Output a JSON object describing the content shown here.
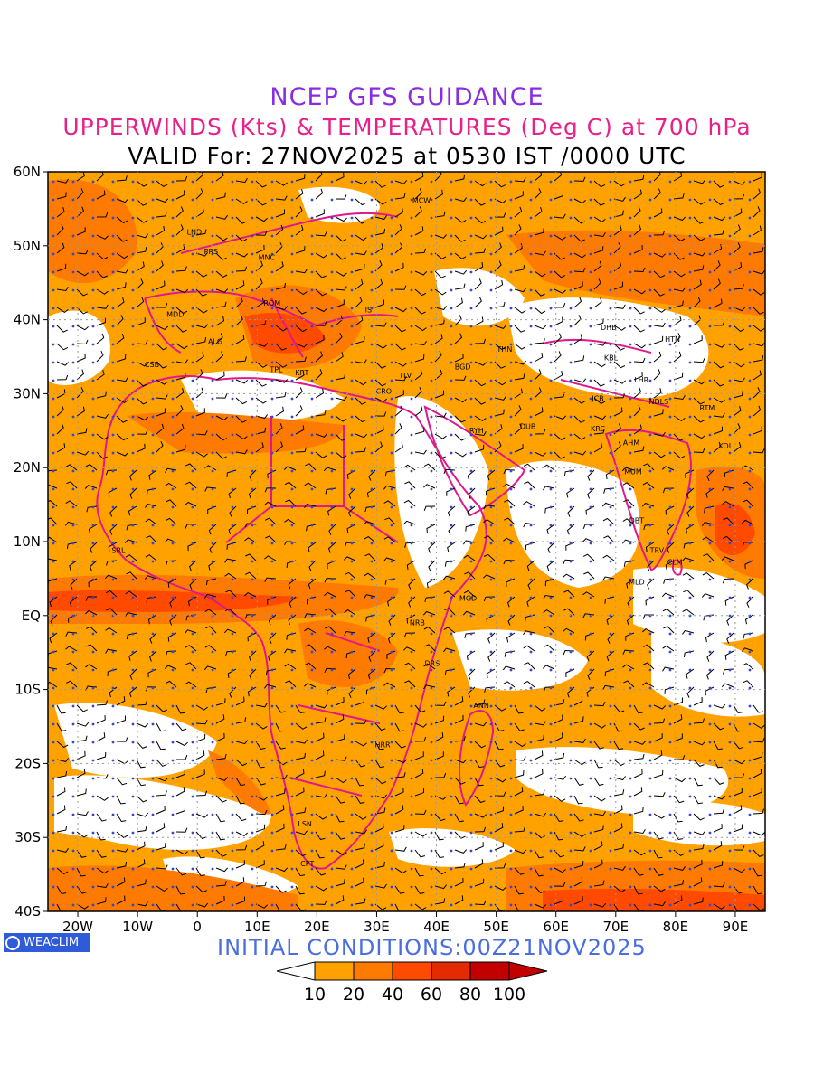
{
  "header": {
    "title": "NCEP GFS GUIDANCE",
    "subtitle": "UPPERWINDS (Kts) & TEMPERATURES (Deg C) at 700 hPa",
    "valid": "VALID For: 27NOV2025 at 0530 IST /0000 UTC"
  },
  "map": {
    "lat_labels": [
      "60N",
      "50N",
      "40N",
      "30N",
      "20N",
      "10N",
      "EQ",
      "10S",
      "20S",
      "30S",
      "40S"
    ],
    "lon_labels": [
      "20W",
      "10W",
      "0",
      "10E",
      "20E",
      "30E",
      "40E",
      "50E",
      "60E",
      "70E",
      "80E",
      "90E"
    ],
    "station_labels": [
      {
        "code": "MCW",
        "lon": 37.5,
        "lat": 55.8
      },
      {
        "code": "LND",
        "lon": -0.5,
        "lat": 51.5
      },
      {
        "code": "PRS",
        "lon": 2.3,
        "lat": 48.9
      },
      {
        "code": "MNC",
        "lon": 11.6,
        "lat": 48.1
      },
      {
        "code": "ROM",
        "lon": 12.5,
        "lat": 41.9
      },
      {
        "code": "IST",
        "lon": 29.0,
        "lat": 41.0
      },
      {
        "code": "MDD",
        "lon": -3.7,
        "lat": 40.4
      },
      {
        "code": "ALG",
        "lon": 3.0,
        "lat": 36.7
      },
      {
        "code": "CSB",
        "lon": -7.6,
        "lat": 33.6
      },
      {
        "code": "TPL",
        "lon": 13.2,
        "lat": 32.9
      },
      {
        "code": "KRT",
        "lon": 17.5,
        "lat": 32.5
      },
      {
        "code": "TLV",
        "lon": 34.8,
        "lat": 32.1
      },
      {
        "code": "CRO",
        "lon": 31.2,
        "lat": 30.0
      },
      {
        "code": "BGD",
        "lon": 44.4,
        "lat": 33.3
      },
      {
        "code": "THN",
        "lon": 51.4,
        "lat": 35.7
      },
      {
        "code": "DHB",
        "lon": 68.8,
        "lat": 38.6
      },
      {
        "code": "KBL",
        "lon": 69.2,
        "lat": 34.5
      },
      {
        "code": "HTN",
        "lon": 79.5,
        "lat": 37.0
      },
      {
        "code": "LHR",
        "lon": 74.3,
        "lat": 31.5
      },
      {
        "code": "NDLS",
        "lon": 77.2,
        "lat": 28.6
      },
      {
        "code": "RTM",
        "lon": 85.3,
        "lat": 27.7
      },
      {
        "code": "JCB",
        "lon": 67.0,
        "lat": 29.0
      },
      {
        "code": "RYH",
        "lon": 46.7,
        "lat": 24.7
      },
      {
        "code": "DUB",
        "lon": 55.3,
        "lat": 25.2
      },
      {
        "code": "KRC",
        "lon": 67.0,
        "lat": 24.9
      },
      {
        "code": "AHM",
        "lon": 72.6,
        "lat": 23.0
      },
      {
        "code": "KOL",
        "lon": 88.4,
        "lat": 22.6
      },
      {
        "code": "MUM",
        "lon": 72.9,
        "lat": 19.1
      },
      {
        "code": "DBT",
        "lon": 73.5,
        "lat": 12.5
      },
      {
        "code": "TRV",
        "lon": 76.9,
        "lat": 8.5
      },
      {
        "code": "CLM",
        "lon": 79.9,
        "lat": 6.9
      },
      {
        "code": "SRL",
        "lon": -13.2,
        "lat": 8.5
      },
      {
        "code": "MLD",
        "lon": 73.5,
        "lat": 4.2
      },
      {
        "code": "MGD",
        "lon": 45.3,
        "lat": 2.0
      },
      {
        "code": "NRB",
        "lon": 36.8,
        "lat": -1.3
      },
      {
        "code": "DRS",
        "lon": 39.3,
        "lat": -6.8
      },
      {
        "code": "ANN",
        "lon": 47.5,
        "lat": -12.5
      },
      {
        "code": "HRR",
        "lon": 31.0,
        "lat": -17.8
      },
      {
        "code": "LSN",
        "lon": 18.0,
        "lat": -28.5
      },
      {
        "code": "CPT",
        "lon": 18.4,
        "lat": -33.9
      }
    ],
    "shading_colors": [
      "#ffa200",
      "#ff7a00",
      "#ff4a00",
      "#e42a00",
      "#c20000"
    ]
  },
  "branding": {
    "logo_text": "WEACLIM"
  },
  "footer": {
    "initial_conditions": "INITIAL  CONDITIONS:00Z21NOV2025"
  },
  "legend": {
    "ticks": [
      "10",
      "20",
      "40",
      "60",
      "80",
      "100"
    ],
    "colors": [
      "#ffffff",
      "#ffa200",
      "#ff7a00",
      "#ff4a00",
      "#e42a00",
      "#c20000",
      "#c20000"
    ]
  }
}
